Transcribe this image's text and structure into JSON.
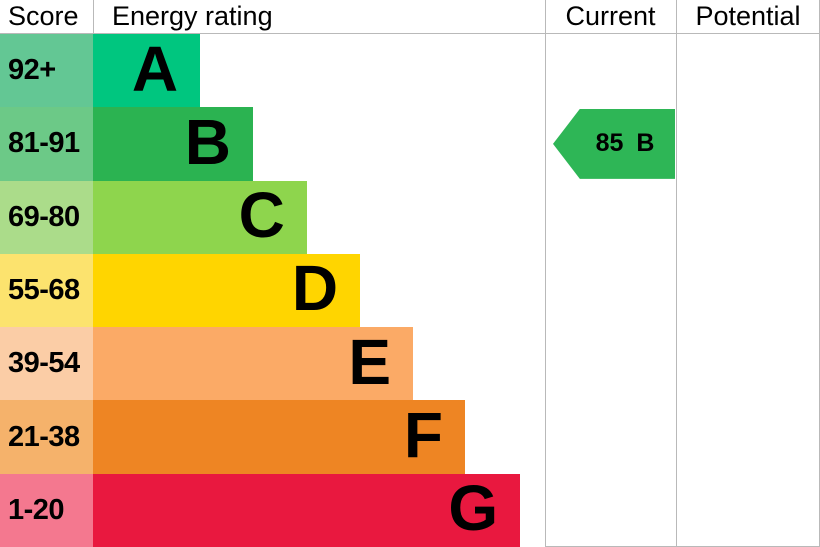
{
  "header": {
    "score": "Score",
    "energy_rating": "Energy rating",
    "current": "Current",
    "potential": "Potential"
  },
  "chart_data": {
    "type": "bar",
    "title": "Energy rating",
    "columns": [
      "Score",
      "Energy rating",
      "Current",
      "Potential"
    ],
    "bands": [
      {
        "band": "A",
        "score_range": "92+",
        "bar_color": "#00c67f",
        "cell_color": "#63c794",
        "bar_length_pct": 23.7
      },
      {
        "band": "B",
        "score_range": "81-91",
        "bar_color": "#2bb351",
        "cell_color": "#6cc987",
        "bar_length_pct": 35.4
      },
      {
        "band": "C",
        "score_range": "69-80",
        "bar_color": "#8ed54d",
        "cell_color": "#abdc8a",
        "bar_length_pct": 47.3
      },
      {
        "band": "D",
        "score_range": "55-68",
        "bar_color": "#ffd500",
        "cell_color": "#fce36e",
        "bar_length_pct": 59.1
      },
      {
        "band": "E",
        "score_range": "39-54",
        "bar_color": "#fbaa66",
        "cell_color": "#fbcda6",
        "bar_length_pct": 70.8
      },
      {
        "band": "F",
        "score_range": "21-38",
        "bar_color": "#ee8523",
        "cell_color": "#f5b26b",
        "bar_length_pct": 82.3
      },
      {
        "band": "G",
        "score_range": "1-20",
        "bar_color": "#e9183f",
        "cell_color": "#f4788f",
        "bar_length_pct": 94.5
      }
    ],
    "current": {
      "value": 85,
      "band": "B",
      "label": "85 B",
      "arrow_color": "#2eb656"
    },
    "potential": {
      "value": null,
      "label": ""
    },
    "border_color": "#b9b9b9",
    "legend": "off",
    "grid": "off"
  }
}
